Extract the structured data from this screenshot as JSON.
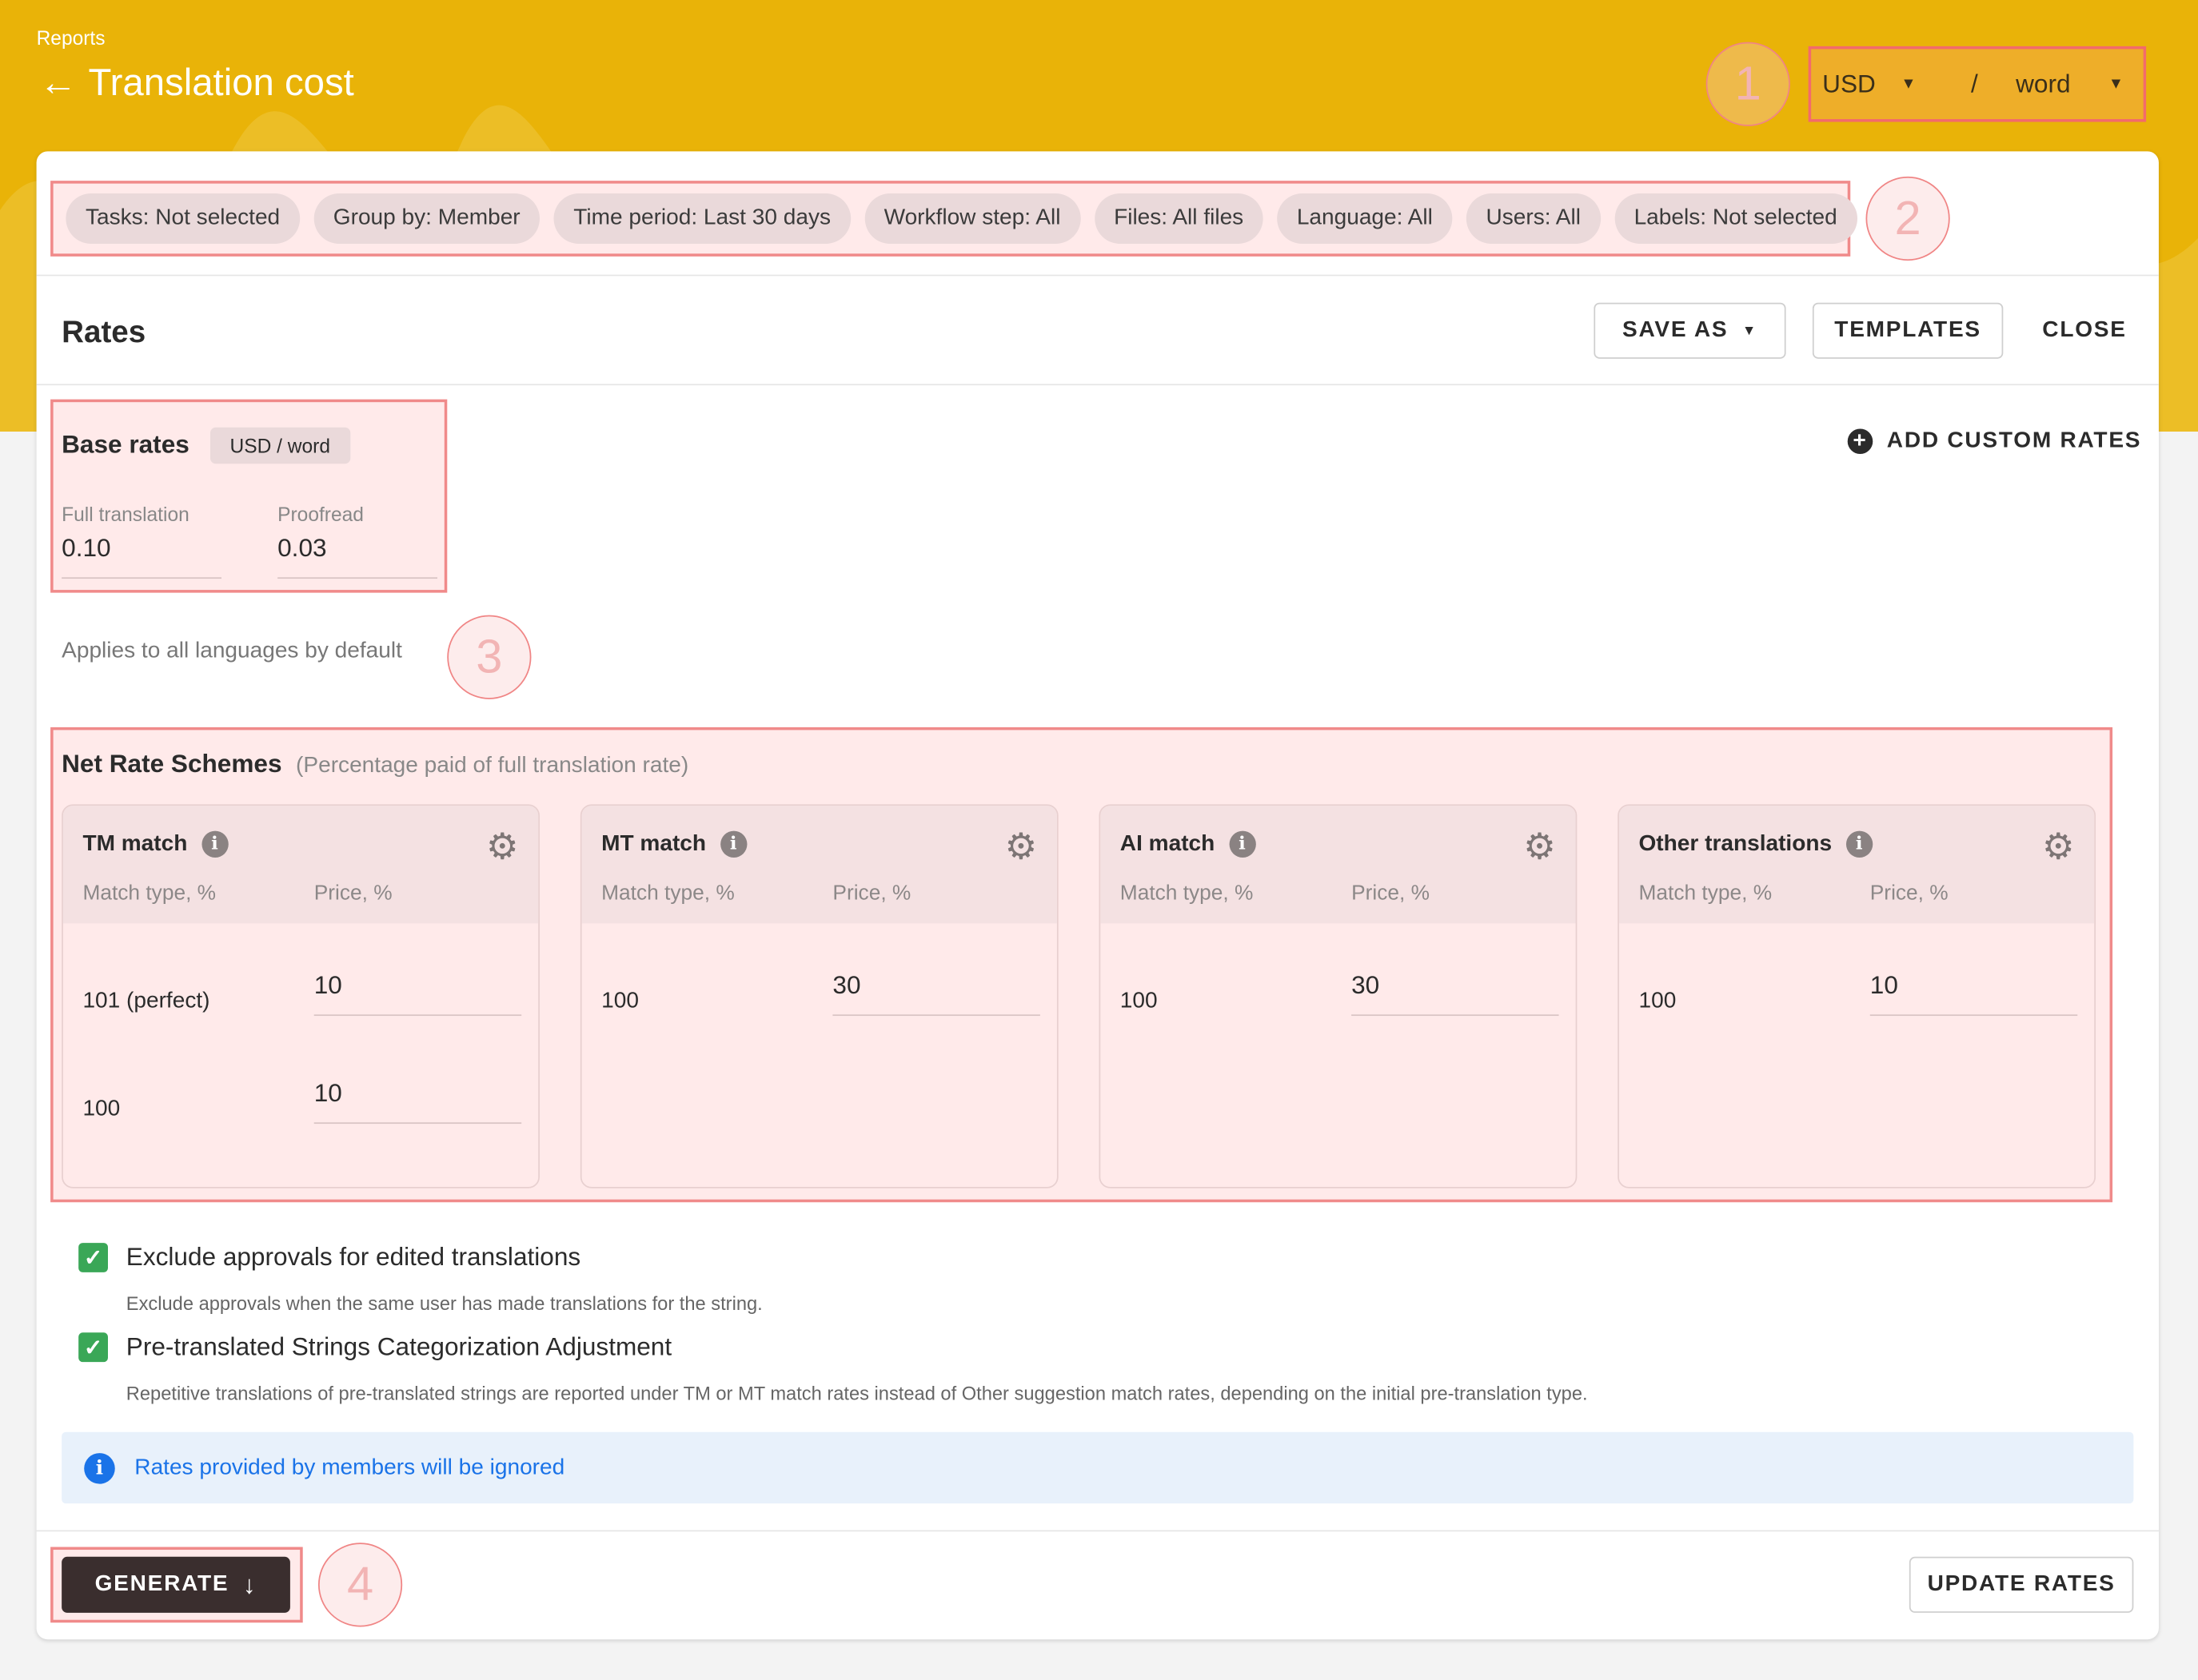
{
  "header": {
    "breadcrumb": "Reports",
    "title": "Translation cost",
    "currency": "USD",
    "unit": "word",
    "separator": "/"
  },
  "annotations": [
    "1",
    "2",
    "3",
    "4"
  ],
  "filters": [
    "Tasks: Not selected",
    "Group by: Member",
    "Time period: Last 30 days",
    "Workflow step: All",
    "Files: All files",
    "Language: All",
    "Users: All",
    "Labels: Not selected"
  ],
  "rates": {
    "title": "Rates",
    "save_as": "SAVE AS",
    "templates": "TEMPLATES",
    "close": "CLOSE",
    "add_custom": "ADD CUSTOM RATES"
  },
  "base_rates": {
    "title": "Base rates",
    "badge": "USD / word",
    "full_label": "Full translation",
    "full_value": "0.10",
    "proof_label": "Proofread",
    "proof_value": "0.03",
    "note": "Applies to all languages by default"
  },
  "net_rates": {
    "title": "Net Rate Schemes",
    "subtitle": "(Percentage paid of full translation rate)",
    "col_match": "Match type, %",
    "col_price": "Price, %",
    "cards": [
      {
        "title": "TM match",
        "rows": [
          {
            "match": "101 (perfect)",
            "price": "10"
          },
          {
            "match": "100",
            "price": "10"
          }
        ]
      },
      {
        "title": "MT match",
        "rows": [
          {
            "match": "100",
            "price": "30"
          }
        ]
      },
      {
        "title": "AI match",
        "rows": [
          {
            "match": "100",
            "price": "30"
          }
        ]
      },
      {
        "title": "Other translations",
        "rows": [
          {
            "match": "100",
            "price": "10"
          }
        ]
      }
    ]
  },
  "options": [
    {
      "title": "Exclude approvals for edited translations",
      "desc": "Exclude approvals when the same user has made translations for the string.",
      "checked": true
    },
    {
      "title": "Pre-translated Strings Categorization Adjustment",
      "desc": "Repetitive translations of pre-translated strings are reported under TM or MT match rates instead of Other suggestion match rates, depending on the initial pre-translation type.",
      "checked": true
    }
  ],
  "banner": {
    "text": "Rates provided by members will be ignored",
    "color": "#1a73e8"
  },
  "footer": {
    "generate": "GENERATE",
    "update": "UPDATE RATES"
  },
  "colors": {
    "header": "#e9b308",
    "check": "#3aa757",
    "generate": "#3a2e2e",
    "highlight": "#f08a8a"
  }
}
